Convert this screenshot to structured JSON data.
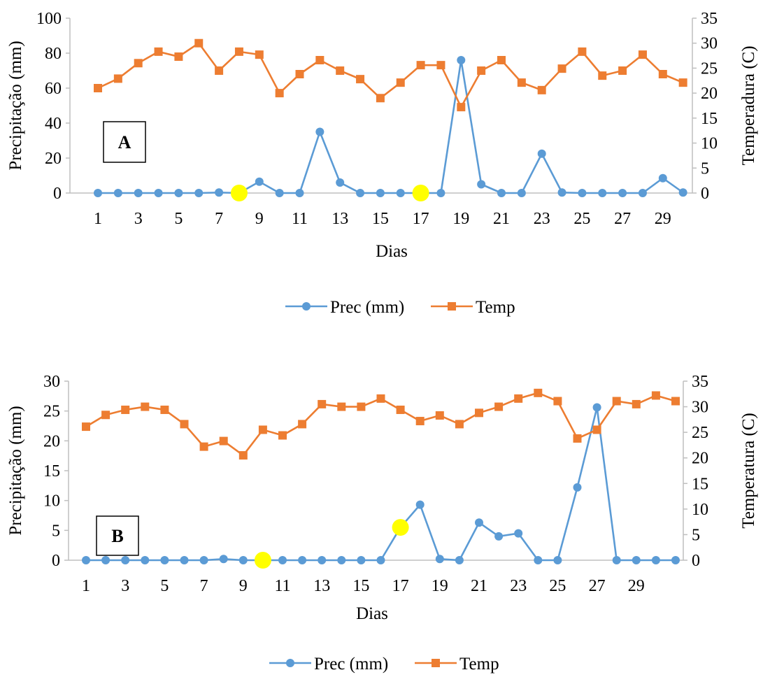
{
  "colors": {
    "prec": "#5B9BD5",
    "temp": "#ED7D31",
    "highlight": "#FFFF00",
    "axis": "#BFBFBF"
  },
  "chart_data": [
    {
      "type": "line",
      "panel_label": "A",
      "xlabel": "Dias",
      "ylabel_left": "Precipitação (mm)",
      "ylabel_right": "Temperadura (C)",
      "ylim_left": [
        0,
        100
      ],
      "yticks_left": [
        0,
        20,
        40,
        60,
        80,
        100
      ],
      "ylim_right": [
        0,
        35
      ],
      "yticks_right": [
        0,
        5,
        10,
        15,
        20,
        25,
        30,
        35
      ],
      "x": [
        1,
        2,
        3,
        4,
        5,
        6,
        7,
        8,
        9,
        10,
        11,
        12,
        13,
        14,
        15,
        16,
        17,
        18,
        19,
        20,
        21,
        22,
        23,
        24,
        25,
        26,
        27,
        28,
        29,
        30
      ],
      "xticks": [
        1,
        3,
        5,
        7,
        9,
        11,
        13,
        15,
        17,
        19,
        21,
        23,
        25,
        27,
        29
      ],
      "series": [
        {
          "name": "Prec (mm)",
          "axis": "left",
          "marker": "circle",
          "values": [
            0,
            0,
            0,
            0,
            0,
            0,
            0.3,
            0,
            6.5,
            0,
            0,
            35,
            6,
            0,
            0,
            0,
            0,
            0,
            76,
            5,
            0,
            0,
            22.5,
            0.3,
            0,
            0,
            0,
            0,
            8.5,
            0.3
          ]
        },
        {
          "name": "Temp",
          "axis": "right",
          "marker": "square",
          "values": [
            21,
            22.9,
            26,
            28.3,
            27.3,
            30,
            24.5,
            28.3,
            27.7,
            20,
            23.8,
            26.6,
            24.5,
            22.8,
            19,
            22.1,
            25.6,
            25.6,
            17.2,
            24.5,
            26.6,
            22.1,
            20.6,
            24.9,
            28.3,
            23.5,
            24.5,
            27.7,
            23.8,
            22.1
          ]
        }
      ],
      "highlights": [
        {
          "x": 8,
          "y": 0
        },
        {
          "x": 17,
          "y": 0
        }
      ],
      "legend": [
        "Prec (mm)",
        "Temp"
      ]
    },
    {
      "type": "line",
      "panel_label": "B",
      "xlabel": "Dias",
      "ylabel_left": "Precipitação (mm)",
      "ylabel_right": "Temperatura (C)",
      "ylim_left": [
        0,
        30
      ],
      "yticks_left": [
        0,
        5,
        10,
        15,
        20,
        25,
        30
      ],
      "ylim_right": [
        0,
        35
      ],
      "yticks_right": [
        0,
        5,
        10,
        15,
        20,
        25,
        30,
        35
      ],
      "x": [
        1,
        2,
        3,
        4,
        5,
        6,
        7,
        8,
        9,
        10,
        11,
        12,
        13,
        14,
        15,
        16,
        17,
        18,
        19,
        20,
        21,
        22,
        23,
        24,
        25,
        26,
        27,
        28,
        29,
        30,
        31
      ],
      "xticks": [
        1,
        3,
        5,
        7,
        9,
        11,
        13,
        15,
        17,
        19,
        21,
        23,
        25,
        27,
        29
      ],
      "series": [
        {
          "name": "Prec (mm)",
          "axis": "left",
          "marker": "circle",
          "values": [
            0,
            0,
            0,
            0,
            0,
            0,
            0,
            0.2,
            0,
            0,
            0,
            0,
            0,
            0,
            0,
            0,
            5.5,
            9.3,
            0.2,
            0,
            6.3,
            4,
            4.5,
            0,
            0,
            12.2,
            25.6,
            0,
            0,
            0,
            0
          ]
        },
        {
          "name": "Temp",
          "axis": "right",
          "marker": "square",
          "values": [
            26.1,
            28.4,
            29.4,
            30,
            29.4,
            26.6,
            22.2,
            23.3,
            20.5,
            25.5,
            24.4,
            26.6,
            30.5,
            30,
            30,
            31.6,
            29.4,
            27.2,
            28.3,
            26.6,
            28.8,
            30,
            31.6,
            32.7,
            31.1,
            23.8,
            25.5,
            31.1,
            30.5,
            32.2,
            31.1
          ]
        }
      ],
      "highlights": [
        {
          "x": 10,
          "y": 0
        },
        {
          "x": 17,
          "y": 5.5
        }
      ],
      "legend": [
        "Prec (mm)",
        "Temp"
      ]
    }
  ]
}
